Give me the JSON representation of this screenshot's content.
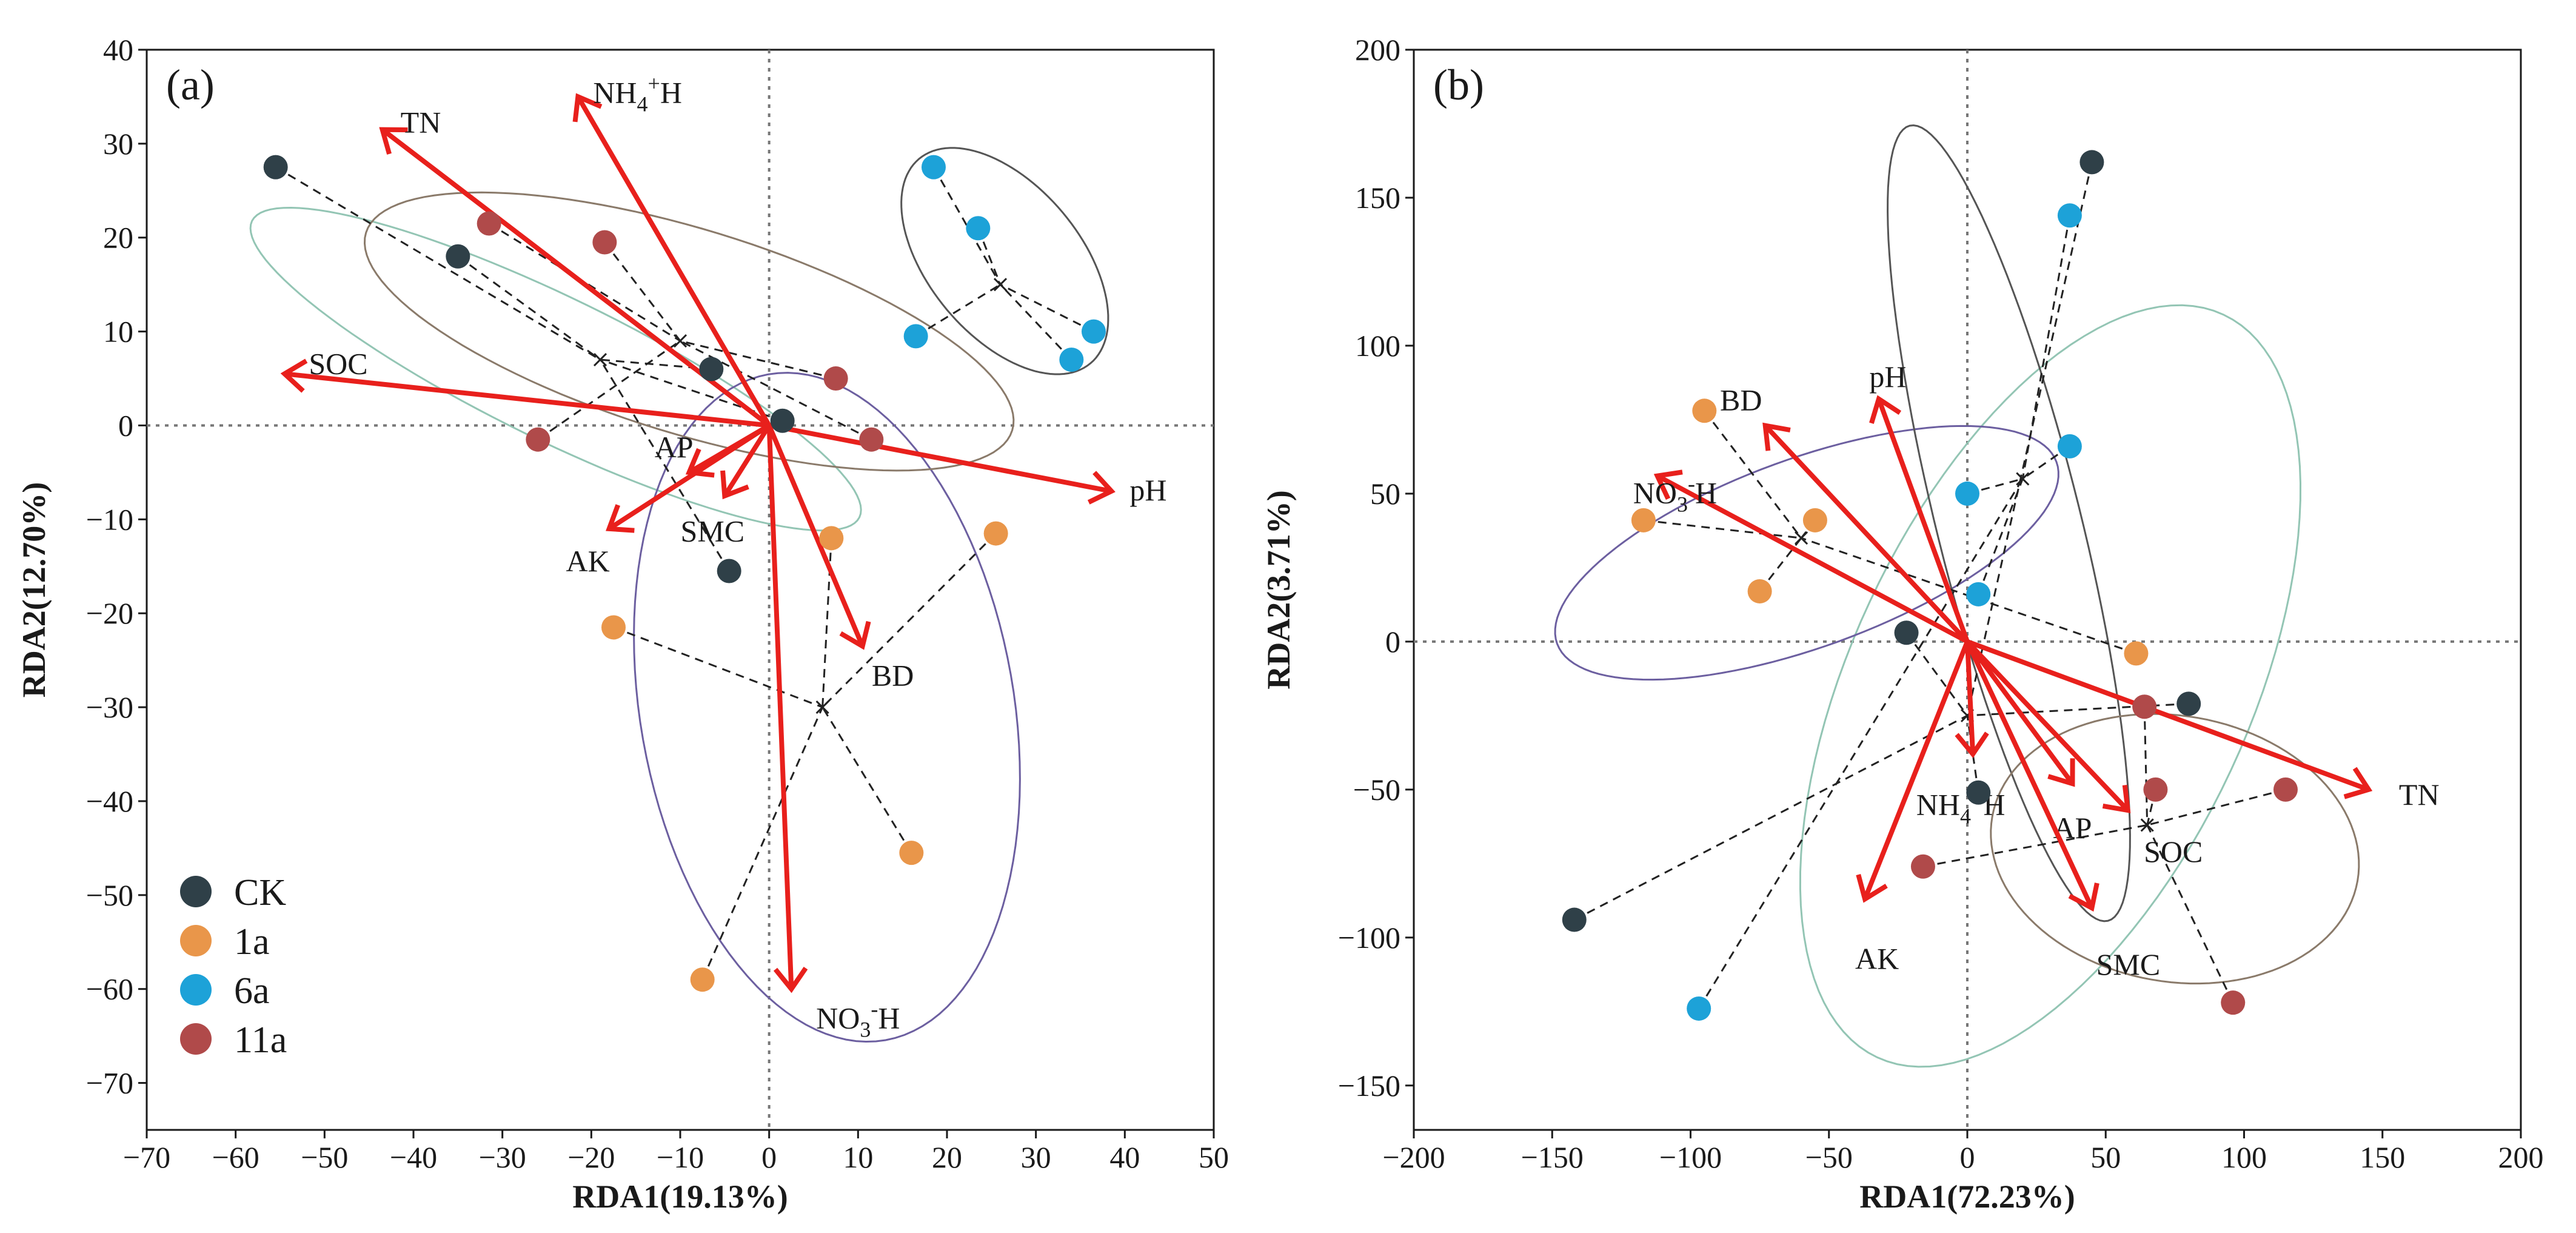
{
  "chart_data": [
    {
      "panel_label": "(a)",
      "type": "scatter",
      "xlabel": "RDA1(19.13%)",
      "ylabel": "RDA2(12.70%)",
      "xlim": [
        -70,
        50
      ],
      "ylim": [
        -75,
        40
      ],
      "xticks": [
        -70,
        -60,
        -50,
        -40,
        -30,
        -20,
        -10,
        0,
        10,
        20,
        30,
        40,
        50
      ],
      "yticks": [
        -70,
        -60,
        -50,
        -40,
        -30,
        -20,
        -10,
        0,
        10,
        20,
        30,
        40
      ],
      "legend": [
        {
          "label": "CK",
          "color": "#2f4048"
        },
        {
          "label": "1a",
          "color": "#e9964a"
        },
        {
          "label": "6a",
          "color": "#1da2d8"
        },
        {
          "label": "11a",
          "color": "#b04a4a"
        }
      ],
      "groups": [
        {
          "name": "CK",
          "color": "#2f4048",
          "ellipse_color": "#93c5b4",
          "ellipse": {
            "cx": -24,
            "cy": 6,
            "rx": 38,
            "ry": 8,
            "angle": -26
          },
          "centroid": [
            -19,
            7
          ],
          "points": [
            [
              -55.5,
              27.5
            ],
            [
              -35,
              18
            ],
            [
              -6.5,
              6
            ],
            [
              1.5,
              0.5
            ],
            [
              -4.5,
              -15.5
            ]
          ]
        },
        {
          "name": "1a",
          "color": "#e9964a",
          "ellipse_color": "#6c5fa0",
          "ellipse": {
            "cx": 6.5,
            "cy": -30,
            "rx": 21,
            "ry": 38,
            "angle": 10
          },
          "centroid": [
            6,
            -30
          ],
          "points": [
            [
              -17.5,
              -21.5
            ],
            [
              7,
              -12
            ],
            [
              25.5,
              -11.5
            ],
            [
              16,
              -45.5
            ],
            [
              -7.5,
              -59
            ]
          ]
        },
        {
          "name": "6a",
          "color": "#1da2d8",
          "ellipse_color": "#555555",
          "ellipse": {
            "cx": 26.5,
            "cy": 17.5,
            "rx": 15,
            "ry": 8.5,
            "angle": -50
          },
          "centroid": [
            26,
            15
          ],
          "points": [
            [
              18.5,
              27.5
            ],
            [
              23.5,
              21
            ],
            [
              16.5,
              9.5
            ],
            [
              34,
              7
            ],
            [
              36.5,
              10
            ]
          ]
        },
        {
          "name": "11a",
          "color": "#b04a4a",
          "ellipse_color": "#8a7a6a",
          "ellipse": {
            "cx": -9,
            "cy": 10,
            "rx": 38,
            "ry": 11.5,
            "angle": -17
          },
          "centroid": [
            -10,
            9
          ],
          "points": [
            [
              -31.5,
              21.5
            ],
            [
              -18.5,
              19.5
            ],
            [
              7.5,
              5
            ],
            [
              11.5,
              -1.5
            ],
            [
              -26,
              -1.5
            ]
          ]
        }
      ],
      "vectors": [
        {
          "label": "TN",
          "x": -43.5,
          "y": 31.5
        },
        {
          "label": "NH₄⁺H",
          "x": -21.5,
          "y": 35
        },
        {
          "label": "SOC",
          "x": -54.5,
          "y": 5.5
        },
        {
          "label": "pH",
          "x": 38.5,
          "y": -7
        },
        {
          "label": "AP",
          "x": -9,
          "y": -5
        },
        {
          "label": "SMC",
          "x": -5,
          "y": -7.5
        },
        {
          "label": "AK",
          "x": -18,
          "y": -11
        },
        {
          "label": "BD",
          "x": 10.5,
          "y": -23.5
        },
        {
          "label": "NO₃⁻H",
          "x": 2.5,
          "y": -60
        }
      ]
    },
    {
      "panel_label": "(b)",
      "type": "scatter",
      "xlabel": "RDA1(72.23%)",
      "ylabel": "RDA2(3.71%)",
      "xlim": [
        -200,
        200
      ],
      "ylim": [
        -165,
        200
      ],
      "xticks": [
        -200,
        -150,
        -100,
        -50,
        0,
        50,
        100,
        150,
        200
      ],
      "yticks": [
        -150,
        -100,
        -50,
        0,
        50,
        100,
        150,
        200
      ],
      "legend": [],
      "groups": [
        {
          "name": "CK",
          "color": "#2f4048",
          "ellipse_color": "#93c5b4",
          "ellipse": {
            "cx": 30,
            "cy": -15,
            "rx": 72,
            "ry": 148,
            "angle": -25
          },
          "centroid": [
            0,
            -25
          ],
          "points": [
            [
              45,
              162
            ],
            [
              -22,
              3
            ],
            [
              80,
              -21
            ],
            [
              4,
              -51
            ],
            [
              -142,
              -94
            ]
          ]
        },
        {
          "name": "1a",
          "color": "#e9964a",
          "ellipse_color": "#6c5fa0",
          "ellipse": {
            "cx": -58,
            "cy": 30,
            "rx": 96,
            "ry": 34,
            "angle": 20
          },
          "centroid": [
            -60,
            35
          ],
          "points": [
            [
              -95,
              78
            ],
            [
              -117,
              41
            ],
            [
              -55,
              41
            ],
            [
              -75,
              17
            ],
            [
              61,
              -4
            ]
          ]
        },
        {
          "name": "6a",
          "color": "#1da2d8",
          "ellipse_color": "#555555",
          "ellipse": {
            "cx": 15,
            "cy": 40,
            "rx": 26,
            "ry": 148,
            "angle": 14
          },
          "centroid": [
            20,
            55
          ],
          "points": [
            [
              37,
              144
            ],
            [
              37,
              66
            ],
            [
              0,
              50
            ],
            [
              4,
              16
            ],
            [
              -97,
              -124
            ]
          ]
        },
        {
          "name": "11a",
          "color": "#b04a4a",
          "ellipse_color": "#8a7a6a",
          "ellipse": {
            "cx": 75,
            "cy": -70,
            "rx": 67,
            "ry": 48,
            "angle": -10
          },
          "centroid": [
            65,
            -62
          ],
          "points": [
            [
              64,
              -22
            ],
            [
              68,
              -50
            ],
            [
              115,
              -50
            ],
            [
              -16,
              -76
            ],
            [
              96,
              -122
            ]
          ]
        }
      ],
      "vectors": [
        {
          "label": "pH",
          "x": -32,
          "y": 82
        },
        {
          "label": "BD",
          "x": -73,
          "y": 73
        },
        {
          "label": "NO₃⁻H",
          "x": -112,
          "y": 56
        },
        {
          "label": "TN",
          "x": 145,
          "y": -50
        },
        {
          "label": "NH₄⁺H",
          "x": 2,
          "y": -38
        },
        {
          "label": "AP",
          "x": 38,
          "y": -48
        },
        {
          "label": "SOC",
          "x": 58,
          "y": -57
        },
        {
          "label": "SMC",
          "x": 45,
          "y": -90
        },
        {
          "label": "AK",
          "x": -37,
          "y": -87
        }
      ]
    }
  ]
}
